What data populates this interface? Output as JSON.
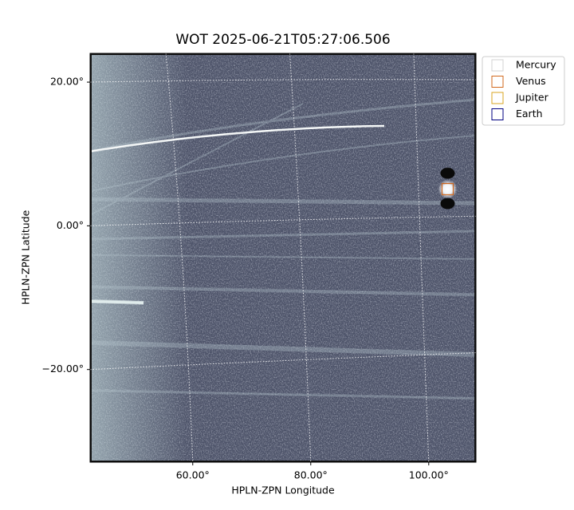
{
  "chart_data": {
    "type": "image",
    "title": "WOT 2025-06-21T05:27:06.506",
    "xlabel": "HPLN-ZPN Longitude",
    "ylabel": "HPLN-ZPN Latitude",
    "xlim": [
      42.6,
      108.0
    ],
    "ylim": [
      -32.9,
      24.0
    ],
    "xticks": [
      {
        "value": 60,
        "label": "60.00°"
      },
      {
        "value": 80,
        "label": "80.00°"
      },
      {
        "value": 100,
        "label": "100.00°"
      }
    ],
    "yticks": [
      {
        "value": 20,
        "label": "20.00°"
      },
      {
        "value": 0,
        "label": "0.00°"
      },
      {
        "value": -20,
        "label": "−20.00°"
      }
    ],
    "grid": true,
    "legend": "upper right",
    "series": [
      {
        "name": "Mercury",
        "color": "#d3d3d3",
        "x": [],
        "values": []
      },
      {
        "name": "Venus",
        "color": "#d2691e",
        "x": [
          103.2
        ],
        "values": [
          5.1
        ]
      },
      {
        "name": "Jupiter",
        "color": "#daa520",
        "x": [],
        "values": []
      },
      {
        "name": "Earth",
        "color": "#000080",
        "x": [],
        "values": []
      }
    ]
  }
}
